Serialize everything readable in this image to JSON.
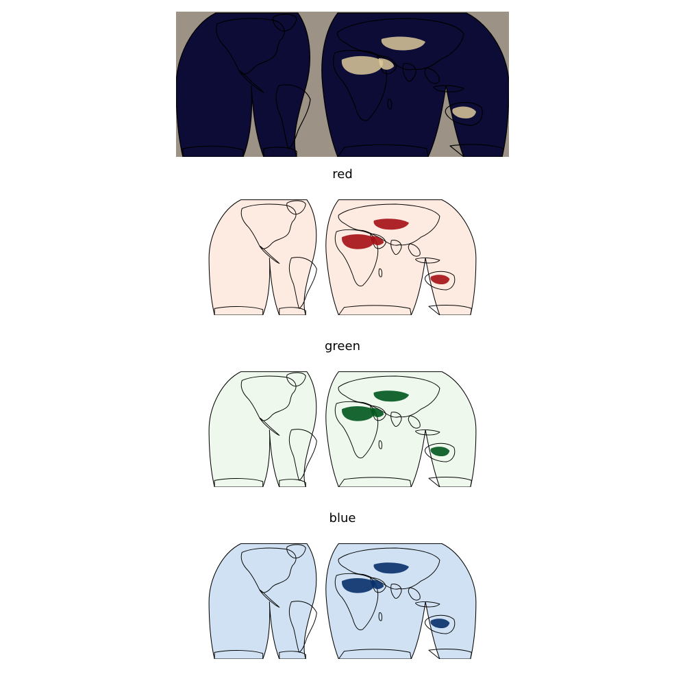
{
  "figure": {
    "panels": [
      {
        "title": "",
        "kind": "rgb-composite"
      },
      {
        "title": "red",
        "kind": "channel",
        "colormap": "Reds",
        "light": "#fdeae0",
        "mid": "#f08767",
        "dark": "#a50f15"
      },
      {
        "title": "green",
        "kind": "channel",
        "colormap": "Greens",
        "light": "#eef8ec",
        "mid": "#6dbb71",
        "dark": "#00571f"
      },
      {
        "title": "blue",
        "kind": "channel",
        "colormap": "Blues",
        "light": "#cfe1f2",
        "mid": "#79b3da",
        "dark": "#08306b"
      }
    ],
    "composite_colors": {
      "ocean": "#0d0c37",
      "background": "#9c9285",
      "forest": "#3f5a2a",
      "desert": "#dcc99a",
      "ice": "#e8ecef"
    }
  },
  "titles": {
    "red": "red",
    "green": "green",
    "blue": "blue"
  }
}
